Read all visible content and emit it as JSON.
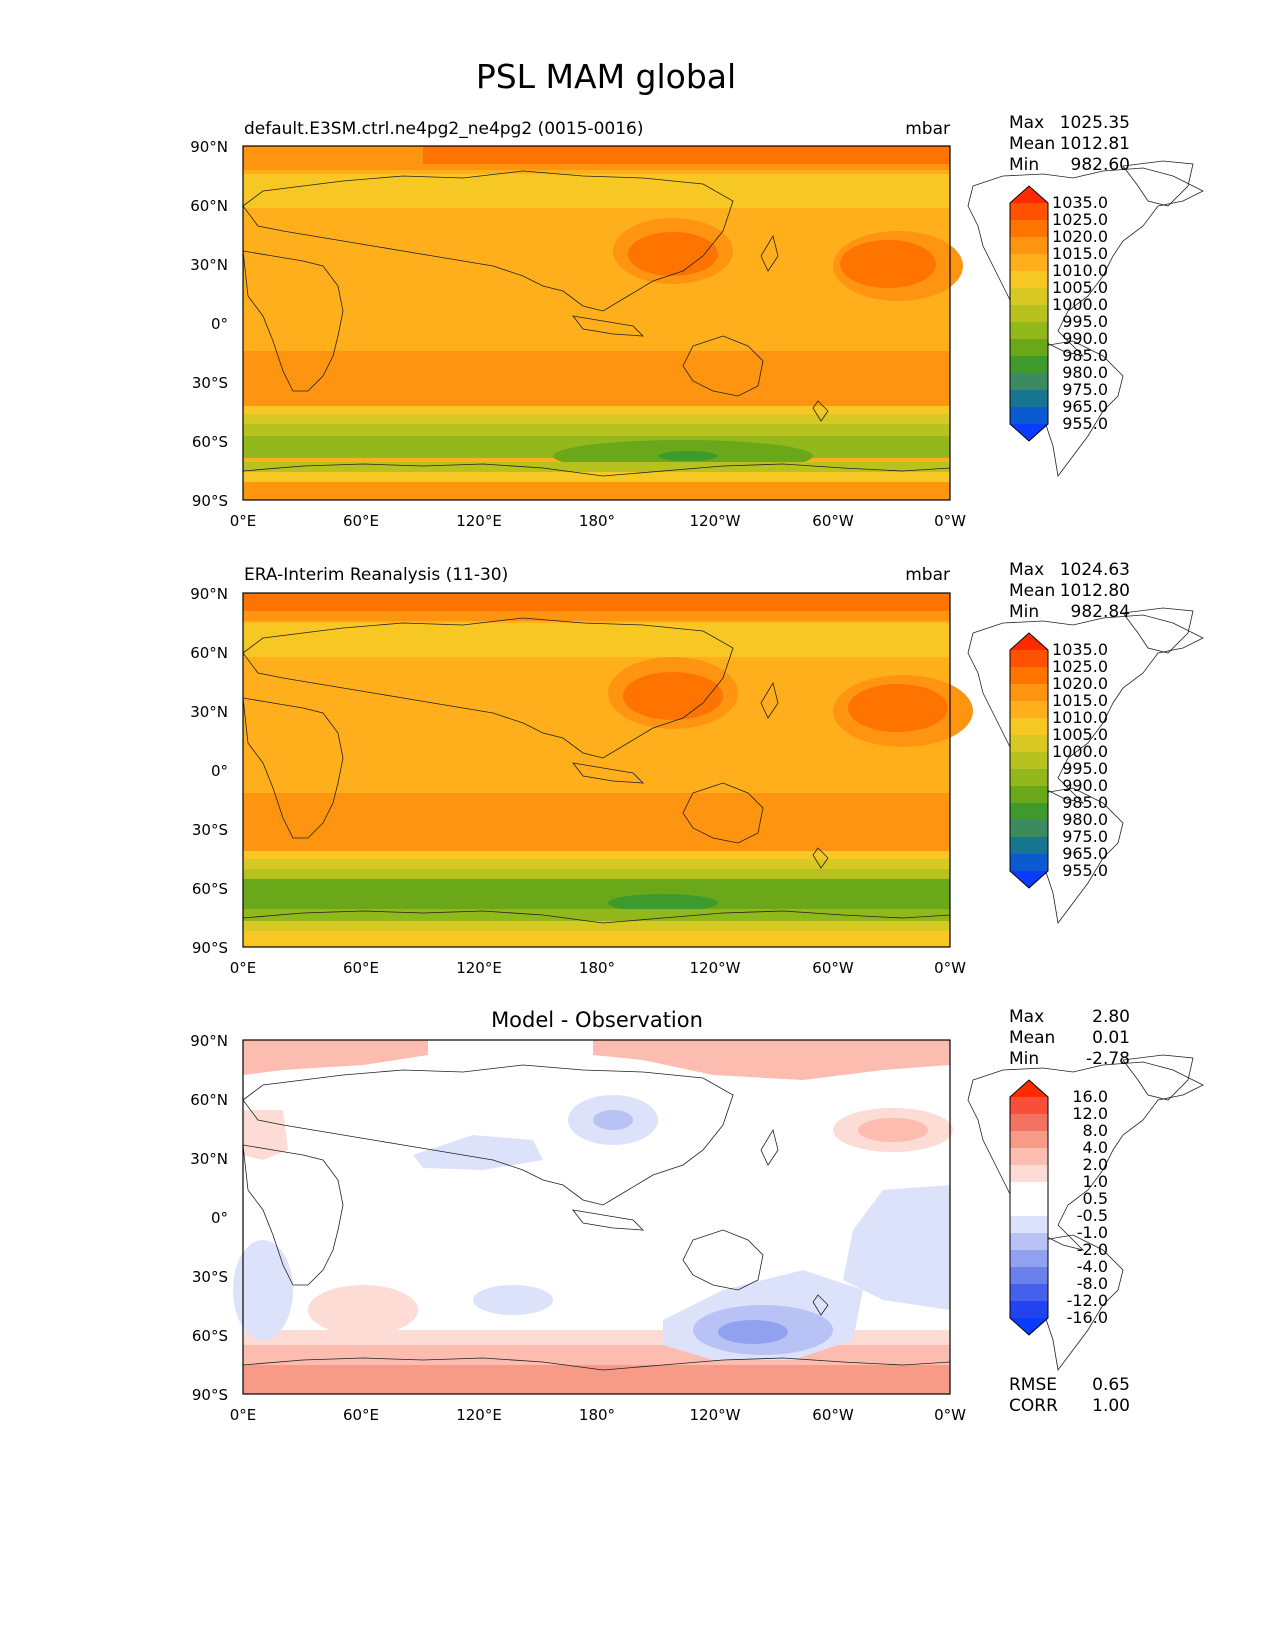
{
  "figure": {
    "title": "PSL MAM global"
  },
  "axes": {
    "lon_ticks": [
      "0°E",
      "60°E",
      "120°E",
      "180°",
      "120°W",
      "60°W",
      "0°W"
    ],
    "lat_ticks": [
      "90°N",
      "60°N",
      "30°N",
      "0°",
      "30°S",
      "60°S",
      "90°S"
    ]
  },
  "panels": [
    {
      "title": "default.E3SM.ctrl.ne4pg2_ne4pg2 (0015-0016)",
      "units": "mbar",
      "stats": [
        {
          "label": "Max",
          "value": "1025.35"
        },
        {
          "label": "Mean",
          "value": "1012.81"
        },
        {
          "label": "Min",
          "value": "982.60"
        }
      ],
      "colorbar_labels": [
        "1035.0",
        "1025.0",
        "1020.0",
        "1015.0",
        "1010.0",
        "1005.0",
        "1000.0",
        "995.0",
        "990.0",
        "985.0",
        "980.0",
        "975.0",
        "965.0",
        "955.0"
      ]
    },
    {
      "title": "ERA-Interim Reanalysis (11-30)",
      "units": "mbar",
      "stats": [
        {
          "label": "Max",
          "value": "1024.63"
        },
        {
          "label": "Mean",
          "value": "1012.80"
        },
        {
          "label": "Min",
          "value": "982.84"
        }
      ],
      "colorbar_labels": [
        "1035.0",
        "1025.0",
        "1020.0",
        "1015.0",
        "1010.0",
        "1005.0",
        "1000.0",
        "995.0",
        "990.0",
        "985.0",
        "980.0",
        "975.0",
        "965.0",
        "955.0"
      ]
    },
    {
      "title": "Model - Observation",
      "units": "",
      "stats": [
        {
          "label": "Max",
          "value": "2.80"
        },
        {
          "label": "Mean",
          "value": "0.01"
        },
        {
          "label": "Min",
          "value": "-2.78"
        }
      ],
      "colorbar_labels": [
        "16.0",
        "12.0",
        "8.0",
        "4.0",
        "2.0",
        "1.0",
        "0.5",
        "-0.5",
        "-1.0",
        "-2.0",
        "-4.0",
        "-8.0",
        "-12.0",
        "-16.0"
      ],
      "footer_stats": [
        {
          "label": "RMSE",
          "value": "0.65"
        },
        {
          "label": "CORR",
          "value": "1.00"
        }
      ]
    }
  ],
  "colors": {
    "psl_scale": [
      "#ff2b00",
      "#ff5200",
      "#ff7400",
      "#ff9410",
      "#ffae1c",
      "#f7c823",
      "#d8c823",
      "#b8c21e",
      "#93b81b",
      "#6aa81a",
      "#3f9a2e",
      "#3b8a60",
      "#17768f",
      "#0a5bd0",
      "#0a3cff"
    ],
    "diff_scale": [
      "#ff2b00",
      "#f94f3a",
      "#f47262",
      "#f89a88",
      "#fcbcb0",
      "#fddcd6",
      "#ffffff",
      "#ffffff",
      "#dde2fb",
      "#b8c2f5",
      "#90a1ef",
      "#6a80ea",
      "#4560ea",
      "#2244f0",
      "#0a3cff"
    ]
  }
}
